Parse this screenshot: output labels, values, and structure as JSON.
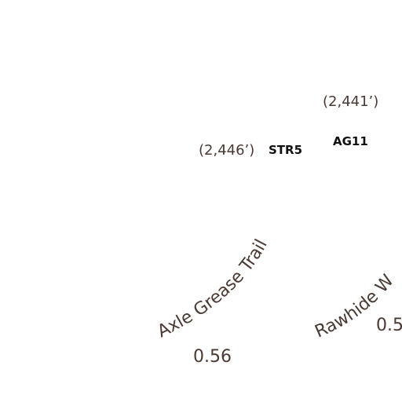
{
  "map": {
    "elevations": [
      {
        "id": "ag11",
        "text": "(2,441’)"
      },
      {
        "id": "str5",
        "text": "(2,446’)"
      }
    ],
    "markers": [
      {
        "id": "str5",
        "text": "STR5"
      },
      {
        "id": "ag11",
        "text": "AG11"
      }
    ],
    "trails": [
      {
        "id": "axle-grease",
        "name": "Axle Grease Trail",
        "distance": "0.56"
      },
      {
        "id": "rawhide",
        "name": "Rawhide W",
        "distance": "0.5"
      }
    ],
    "colors": {
      "trail_label": "#4a3a33",
      "marker_label": "#111111",
      "background": "#ffffff"
    }
  }
}
